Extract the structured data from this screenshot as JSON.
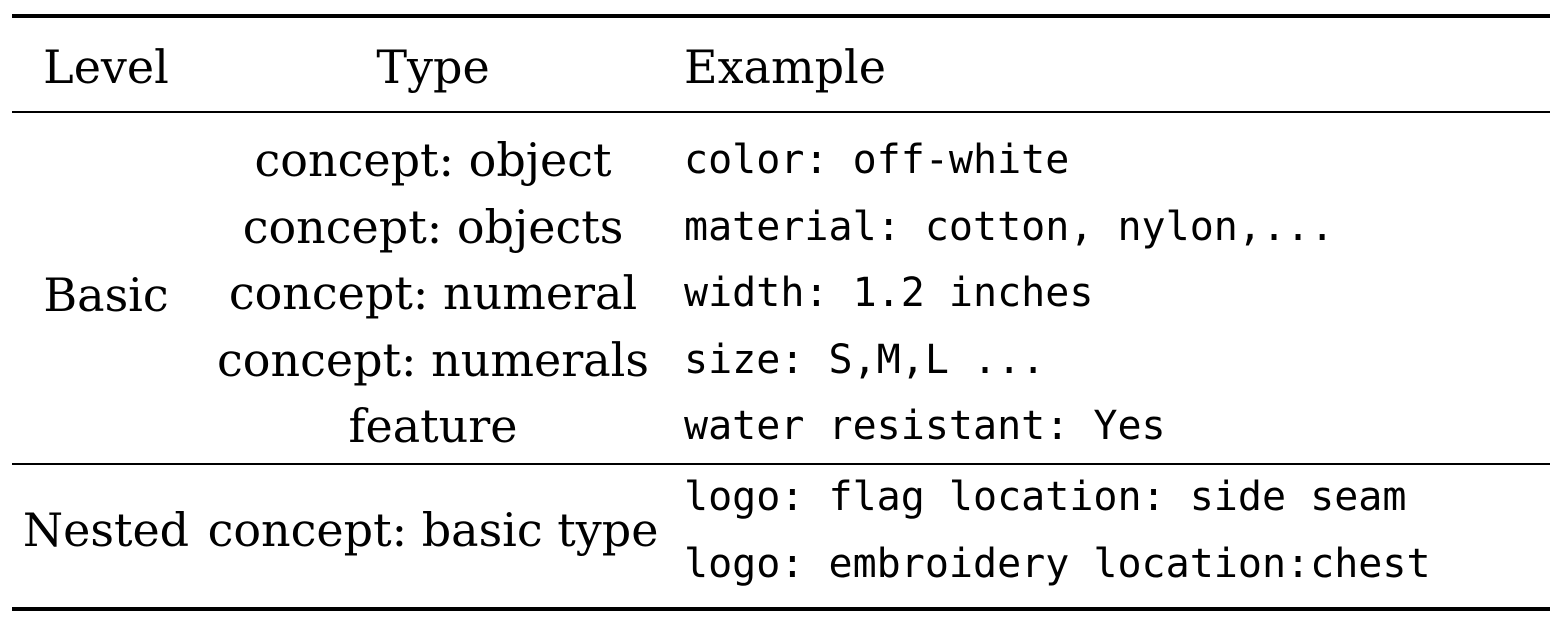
{
  "table": {
    "headers": {
      "level": "Level",
      "type": "Type",
      "example": "Example"
    },
    "groups": [
      {
        "level": "Basic",
        "rows": [
          {
            "type": "concept: object",
            "example": "color: off-white"
          },
          {
            "type": "concept: objects",
            "example": "material: cotton, nylon,..."
          },
          {
            "type": "concept: numeral",
            "example": "width: 1.2 inches"
          },
          {
            "type": "concept: numerals",
            "example": "size: S,M,L ..."
          },
          {
            "type": "feature",
            "example": "water resistant: Yes"
          }
        ]
      },
      {
        "level": "Nested",
        "type": "concept: basic type",
        "examples": [
          "logo: flag location: side seam",
          "logo: embroidery location:chest"
        ]
      }
    ]
  }
}
